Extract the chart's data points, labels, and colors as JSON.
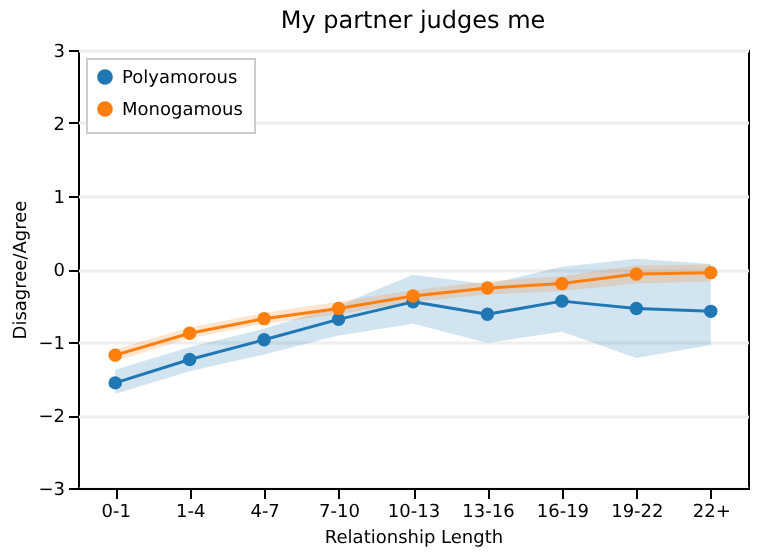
{
  "chart_data": {
    "type": "line",
    "title": "My partner judges me",
    "xlabel": "Relationship Length",
    "ylabel": "Disagree/Agree",
    "categories": [
      "0-1",
      "1-4",
      "4-7",
      "7-10",
      "10-13",
      "13-16",
      "16-19",
      "19-22",
      "22+"
    ],
    "series": [
      {
        "name": "Polyamorous",
        "color": "#1f77b4",
        "values": [
          -1.56,
          -1.24,
          -0.97,
          -0.69,
          -0.45,
          -0.62,
          -0.44,
          -0.54,
          -0.58
        ],
        "lower": [
          -1.71,
          -1.4,
          -1.17,
          -0.91,
          -0.75,
          -1.01,
          -0.86,
          -1.22,
          -1.04
        ],
        "upper": [
          -1.38,
          -1.07,
          -0.82,
          -0.5,
          -0.08,
          -0.21,
          0.03,
          0.14,
          0.07
        ]
      },
      {
        "name": "Monogamous",
        "color": "#ff7f0e",
        "values": [
          -1.18,
          -0.88,
          -0.68,
          -0.54,
          -0.37,
          -0.26,
          -0.2,
          -0.07,
          -0.05
        ],
        "lower": [
          -1.26,
          -0.95,
          -0.75,
          -0.62,
          -0.45,
          -0.35,
          -0.3,
          -0.2,
          -0.17
        ],
        "upper": [
          -1.1,
          -0.8,
          -0.6,
          -0.45,
          -0.29,
          -0.17,
          -0.1,
          0.05,
          0.06
        ]
      }
    ],
    "ylim": [
      -3,
      3
    ],
    "yticks": [
      -3,
      -2,
      -1,
      0,
      1,
      2,
      3
    ],
    "grid": "y",
    "legend": "top left",
    "marker": "circle",
    "line_style": "solid"
  }
}
